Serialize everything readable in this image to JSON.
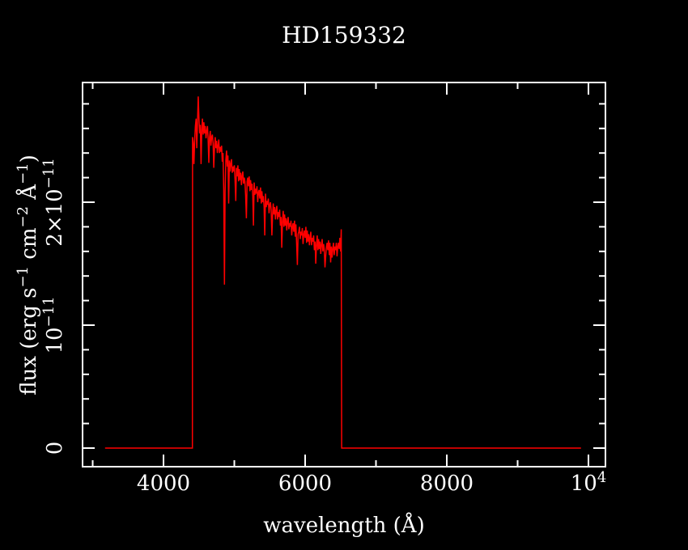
{
  "window": {
    "title": "HD159332"
  },
  "colors": {
    "background": "#000000",
    "frame": "#ffffff",
    "text": "#ffffff",
    "spectrum": "#ff0000"
  },
  "chart_data": {
    "type": "line",
    "title": "HD159332",
    "xlabel": "wavelength (Å)",
    "ylabel": "flux (erg s⁻¹ cm⁻² Å⁻¹)",
    "ylabel_parts": [
      {
        "t": "flux (erg s"
      },
      {
        "s": "−1"
      },
      {
        "t": " cm"
      },
      {
        "s": "−2"
      },
      {
        "t": " Å"
      },
      {
        "s": "−1"
      },
      {
        "t": ")"
      }
    ],
    "grid": false,
    "legend": "none",
    "xlim": [
      2857,
      10240
    ],
    "ylim_1e11": [
      -0.151,
      2.974
    ],
    "x_axis": {
      "major_ticks": [
        {
          "value": 4000,
          "base": "4000",
          "sup": ""
        },
        {
          "value": 6000,
          "base": "6000",
          "sup": ""
        },
        {
          "value": 8000,
          "base": "8000",
          "sup": ""
        },
        {
          "value": 10000,
          "base": "10",
          "sup": "4"
        }
      ],
      "minor_ticks": [
        3000,
        5000,
        7000,
        9000
      ]
    },
    "y_axis": {
      "major_ticks": [
        {
          "value_1e11": 0,
          "base": "0",
          "sup": ""
        },
        {
          "value_1e11": 1,
          "base": "10",
          "sup": "−11"
        },
        {
          "value_1e11": 2,
          "base": "2×10",
          "sup": "−11"
        }
      ],
      "minor_step_1e11": 0.2
    },
    "series": [
      {
        "name": "spectrum",
        "color": "#ff0000",
        "flux_unit": "1e-11 erg s−1 cm−2 Å−1",
        "zero_level_segments_angstrom": [
          [
            3175,
            4408
          ],
          [
            6515,
            9895
          ]
        ],
        "wavelength_start": 4410,
        "wavelength_step": 10,
        "flux_1e11": [
          2.53,
          2.48,
          2.31,
          2.5,
          2.62,
          2.68,
          2.44,
          2.65,
          2.86,
          2.68,
          2.56,
          2.63,
          2.31,
          2.59,
          2.68,
          2.55,
          2.65,
          2.56,
          2.62,
          2.52,
          2.58,
          2.62,
          2.52,
          2.32,
          2.53,
          2.58,
          2.46,
          2.53,
          2.55,
          2.48,
          2.28,
          2.44,
          2.53,
          2.44,
          2.5,
          2.4,
          2.46,
          2.51,
          2.4,
          2.45,
          2.41,
          2.46,
          2.33,
          2.4,
          2.1,
          1.33,
          2.08,
          2.34,
          2.42,
          2.29,
          2.38,
          1.99,
          2.34,
          2.25,
          2.31,
          2.35,
          2.24,
          2.29,
          2.25,
          2.3,
          2.18,
          2.01,
          2.28,
          2.21,
          2.3,
          2.17,
          2.27,
          2.18,
          2.24,
          2.14,
          2.21,
          2.25,
          2.15,
          2.2,
          2.17,
          2.05,
          1.87,
          2.17,
          2.2,
          2.13,
          2.21,
          2.09,
          2.18,
          2.1,
          2.15,
          2.05,
          1.81,
          2.16,
          2.06,
          2.11,
          2.07,
          2.13,
          2.0,
          2.08,
          2.1,
          2.03,
          2.12,
          1.99,
          2.09,
          2.0,
          2.05,
          1.96,
          1.73,
          2.07,
          1.96,
          2.01,
          1.98,
          2.03,
          1.91,
          1.98,
          2.0,
          1.94,
          1.73,
          1.9,
          1.99,
          1.9,
          1.96,
          1.86,
          1.93,
          1.97,
          1.86,
          1.92,
          1.88,
          1.94,
          1.81,
          1.88,
          1.63,
          1.84,
          1.93,
          1.8,
          1.9,
          1.81,
          1.87,
          1.77,
          1.84,
          1.88,
          1.78,
          1.83,
          1.8,
          1.85,
          1.73,
          1.8,
          1.83,
          1.76,
          1.85,
          1.72,
          1.82,
          1.66,
          1.49,
          1.74,
          1.76,
          1.8,
          1.7,
          1.76,
          1.73,
          1.79,
          1.66,
          1.74,
          1.77,
          1.71,
          1.8,
          1.67,
          1.77,
          1.68,
          1.74,
          1.65,
          1.71,
          1.76,
          1.65,
          1.71,
          1.68,
          1.73,
          1.61,
          1.68,
          1.5,
          1.65,
          1.73,
          1.61,
          1.7,
          1.62,
          1.68,
          1.58,
          1.65,
          1.7,
          1.6,
          1.66,
          1.62,
          1.47,
          1.56,
          1.64,
          1.67,
          1.61,
          1.69,
          1.57,
          1.67,
          1.51,
          1.64,
          1.55,
          1.62,
          1.67,
          1.57,
          1.64,
          1.61,
          1.67,
          1.56,
          1.64,
          1.67,
          1.62,
          1.71,
          1.6,
          1.78
        ]
      }
    ]
  }
}
